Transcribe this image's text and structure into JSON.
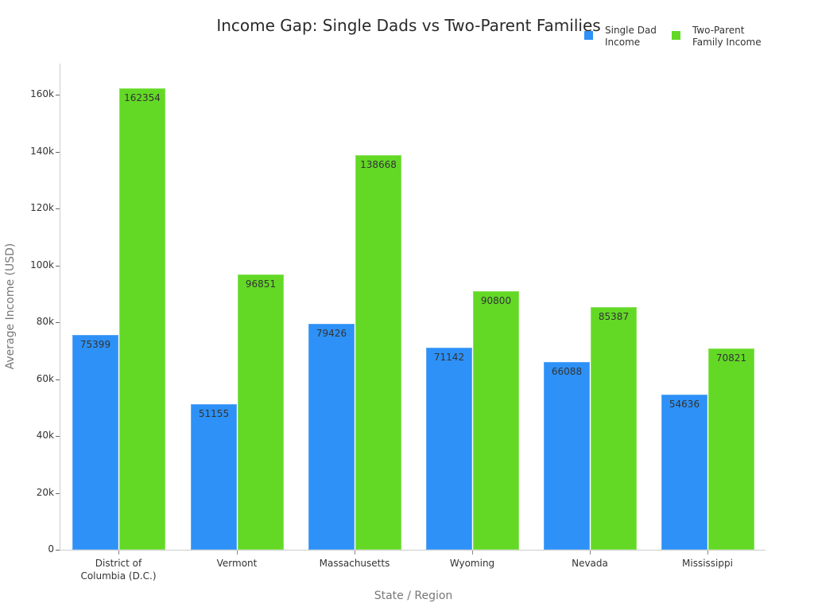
{
  "chart_data": {
    "type": "bar",
    "title": "Income Gap: Single Dads vs Two-Parent Families",
    "xlabel": "State / Region",
    "ylabel": "Average Income (USD)",
    "categories": [
      "District of Columbia (D.C.)",
      "Vermont",
      "Massachusetts",
      "Wyoming",
      "Nevada",
      "Mississippi"
    ],
    "category_lines": [
      [
        "District of",
        "Columbia (D.C.)"
      ],
      [
        "Vermont"
      ],
      [
        "Massachusetts"
      ],
      [
        "Wyoming"
      ],
      [
        "Nevada"
      ],
      [
        "Mississippi"
      ]
    ],
    "series": [
      {
        "name": "Single Dad Income",
        "legend_lines": [
          "Single Dad",
          "Income"
        ],
        "color": "#2d91f7",
        "values": [
          75399,
          51155,
          79426,
          71142,
          66088,
          54636
        ]
      },
      {
        "name": "Two-Parent Family Income",
        "legend_lines": [
          "Two-Parent",
          "Family Income"
        ],
        "color": "#63d926",
        "values": [
          162354,
          96851,
          138668,
          90800,
          85387,
          70821
        ]
      }
    ],
    "yticks": [
      0,
      20000,
      40000,
      60000,
      80000,
      100000,
      120000,
      140000,
      160000
    ],
    "ytick_labels": [
      "0",
      "20k",
      "40k",
      "60k",
      "80k",
      "100k",
      "120k",
      "140k",
      "160k"
    ],
    "ylim": [
      0,
      170000
    ],
    "grid": false,
    "legend_position": "top-right",
    "data_labels": true
  }
}
